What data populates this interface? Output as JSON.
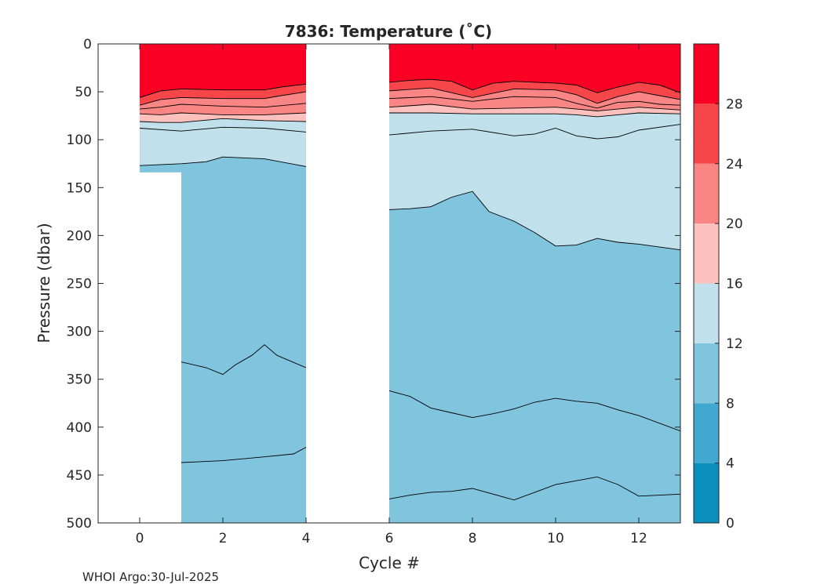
{
  "chart_data": {
    "type": "contourf",
    "title": "7836:  Temperature (˚C)",
    "xlabel": "Cycle #",
    "ylabel": "Pressure (dbar)",
    "xlim": [
      -1,
      13
    ],
    "ylim": [
      500,
      0
    ],
    "x_ticks": [
      0,
      2,
      4,
      6,
      8,
      10,
      12
    ],
    "y_ticks": [
      0,
      50,
      100,
      150,
      200,
      250,
      300,
      350,
      400,
      450,
      500
    ],
    "colorbar": {
      "levels": [
        0,
        4,
        8,
        12,
        16,
        20,
        24,
        28,
        32
      ],
      "tick_labels": [
        "0",
        "4",
        "8",
        "12",
        "16",
        "20",
        "24",
        "28"
      ],
      "colors": [
        "#0a8fbd",
        "#41a8cf",
        "#80c4de",
        "#c0e0ec",
        "#fcc1bd",
        "#fa8585",
        "#f74649",
        "#fb0025"
      ]
    },
    "segments": [
      {
        "name": "cycles 0-4",
        "x_start": 0,
        "x_end": 4,
        "data_bottom": [
          [
            0,
            134
          ],
          [
            1,
            134
          ],
          [
            1,
            500
          ],
          [
            4,
            500
          ]
        ],
        "isolines": [
          {
            "level": 28,
            "points": [
              [
                0,
                56
              ],
              [
                0.5,
                49
              ],
              [
                1,
                47
              ],
              [
                2,
                48
              ],
              [
                3,
                48
              ],
              [
                3.4,
                45
              ],
              [
                4,
                42
              ]
            ]
          },
          {
            "level": 26,
            "points": [
              [
                0,
                64
              ],
              [
                0.5,
                58
              ],
              [
                1,
                56
              ],
              [
                2,
                57
              ],
              [
                3,
                57
              ],
              [
                3.4,
                54
              ],
              [
                4,
                50
              ]
            ]
          },
          {
            "level": 24,
            "points": [
              [
                0,
                68
              ],
              [
                0.5,
                66
              ],
              [
                1,
                63
              ],
              [
                2,
                65
              ],
              [
                3,
                66
              ],
              [
                4,
                62
              ]
            ]
          },
          {
            "level": 20,
            "points": [
              [
                0,
                73
              ],
              [
                0.5,
                74
              ],
              [
                1,
                72
              ],
              [
                2,
                74
              ],
              [
                3,
                74
              ],
              [
                4,
                72
              ]
            ]
          },
          {
            "level": 16,
            "points": [
              [
                0,
                81
              ],
              [
                0.5,
                82
              ],
              [
                1,
                82
              ],
              [
                2,
                78
              ],
              [
                3,
                80
              ],
              [
                4,
                81
              ]
            ]
          },
          {
            "level": 14,
            "points": [
              [
                0,
                88
              ],
              [
                1,
                91
              ],
              [
                2,
                87
              ],
              [
                3,
                88
              ],
              [
                4,
                92
              ]
            ]
          },
          {
            "level": 12,
            "points": [
              [
                0,
                127
              ],
              [
                1,
                125
              ],
              [
                1.6,
                123
              ],
              [
                2,
                118
              ],
              [
                3,
                120
              ],
              [
                4,
                128
              ]
            ]
          },
          {
            "level": 10,
            "points": [
              [
                1,
                332
              ],
              [
                1.6,
                338
              ],
              [
                2,
                345
              ],
              [
                2.3,
                335
              ],
              [
                2.7,
                325
              ],
              [
                3,
                314
              ],
              [
                3.3,
                325
              ],
              [
                4,
                338
              ]
            ]
          },
          {
            "level": 9,
            "points": [
              [
                1,
                437
              ],
              [
                2,
                435
              ],
              [
                3,
                431
              ],
              [
                3.7,
                428
              ],
              [
                4,
                421
              ]
            ]
          }
        ]
      },
      {
        "name": "cycles 6-13",
        "x_start": 6,
        "x_end": 13,
        "data_bottom": [
          [
            6,
            500
          ],
          [
            13,
            500
          ]
        ],
        "isolines": [
          {
            "level": 28,
            "points": [
              [
                6,
                40
              ],
              [
                6.5,
                38
              ],
              [
                7,
                37
              ],
              [
                7.5,
                39
              ],
              [
                8,
                48
              ],
              [
                8.5,
                41
              ],
              [
                9,
                39
              ],
              [
                9.5,
                40
              ],
              [
                10,
                41
              ],
              [
                10.5,
                43
              ],
              [
                11,
                51
              ],
              [
                11.5,
                45
              ],
              [
                12,
                40
              ],
              [
                12.5,
                43
              ],
              [
                13,
                51
              ]
            ]
          },
          {
            "level": 26,
            "points": [
              [
                6,
                49
              ],
              [
                7,
                46
              ],
              [
                8,
                56
              ],
              [
                9,
                47
              ],
              [
                10,
                48
              ],
              [
                10.5,
                53
              ],
              [
                11,
                62
              ],
              [
                11.5,
                55
              ],
              [
                12,
                50
              ],
              [
                12.5,
                54
              ],
              [
                13,
                58
              ]
            ]
          },
          {
            "level": 24,
            "points": [
              [
                6,
                57
              ],
              [
                7,
                55
              ],
              [
                8,
                60
              ],
              [
                9,
                55
              ],
              [
                10,
                56
              ],
              [
                10.5,
                62
              ],
              [
                11,
                67
              ],
              [
                11.5,
                61
              ],
              [
                12,
                60
              ],
              [
                12.5,
                63
              ],
              [
                13,
                64
              ]
            ]
          },
          {
            "level": 20,
            "points": [
              [
                6,
                66
              ],
              [
                7,
                63
              ],
              [
                8,
                68
              ],
              [
                9,
                67
              ],
              [
                10,
                66
              ],
              [
                10.5,
                68
              ],
              [
                11,
                70
              ],
              [
                11.5,
                68
              ],
              [
                12,
                66
              ],
              [
                13,
                69
              ]
            ]
          },
          {
            "level": 16,
            "points": [
              [
                6,
                72
              ],
              [
                7,
                72
              ],
              [
                8,
                73
              ],
              [
                9,
                73
              ],
              [
                10,
                73
              ],
              [
                10.5,
                74
              ],
              [
                11,
                76
              ],
              [
                11.5,
                74
              ],
              [
                12,
                72
              ],
              [
                13,
                73
              ]
            ]
          },
          {
            "level": 14,
            "points": [
              [
                6,
                95
              ],
              [
                7,
                91
              ],
              [
                8,
                89
              ],
              [
                9,
                96
              ],
              [
                9.5,
                94
              ],
              [
                10,
                88
              ],
              [
                10.5,
                96
              ],
              [
                11,
                99
              ],
              [
                11.5,
                97
              ],
              [
                12,
                90
              ],
              [
                13,
                84
              ]
            ]
          },
          {
            "level": 12,
            "points": [
              [
                6,
                173
              ],
              [
                6.5,
                172
              ],
              [
                7,
                170
              ],
              [
                7.5,
                160
              ],
              [
                8,
                154
              ],
              [
                8.4,
                175
              ],
              [
                9,
                185
              ],
              [
                9.5,
                197
              ],
              [
                10,
                211
              ],
              [
                10.5,
                210
              ],
              [
                11,
                203
              ],
              [
                11.5,
                207
              ],
              [
                12,
                209
              ],
              [
                13,
                215
              ]
            ]
          },
          {
            "level": 10,
            "points": [
              [
                6,
                362
              ],
              [
                6.5,
                368
              ],
              [
                7,
                380
              ],
              [
                7.5,
                385
              ],
              [
                8,
                390
              ],
              [
                8.5,
                386
              ],
              [
                9,
                381
              ],
              [
                9.5,
                374
              ],
              [
                10,
                370
              ],
              [
                10.5,
                373
              ],
              [
                11,
                375
              ],
              [
                11.5,
                382
              ],
              [
                12,
                388
              ],
              [
                13,
                404
              ]
            ]
          },
          {
            "level": 9,
            "points": [
              [
                6,
                475
              ],
              [
                6.5,
                471
              ],
              [
                7,
                468
              ],
              [
                7.5,
                467
              ],
              [
                8,
                464
              ],
              [
                8.5,
                470
              ],
              [
                9,
                476
              ],
              [
                9.5,
                468
              ],
              [
                10,
                460
              ],
              [
                10.5,
                456
              ],
              [
                11,
                452
              ],
              [
                11.5,
                460
              ],
              [
                12,
                472
              ],
              [
                13,
                470
              ]
            ]
          }
        ]
      }
    ]
  },
  "footer": {
    "credit": "WHOI Argo:30-Jul-2025"
  }
}
